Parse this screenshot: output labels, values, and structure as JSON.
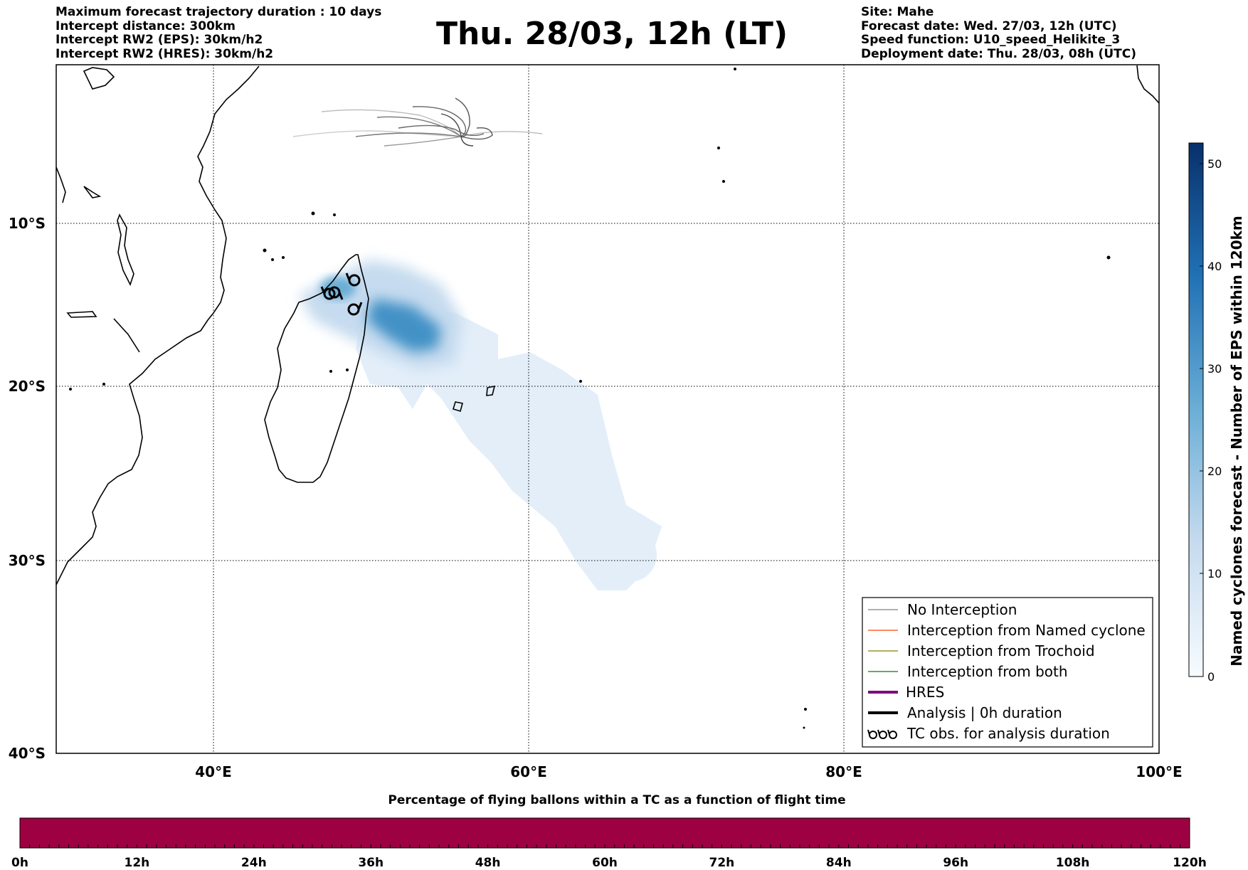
{
  "header": {
    "info_left": [
      "Maximum forecast trajectory duration : 10 days",
      "Intercept distance: 300km",
      "Intercept RW2 (EPS):  30km/h2",
      "Intercept RW2 (HRES): 30km/h2"
    ],
    "title": "Thu. 28/03, 12h (LT)",
    "info_right": [
      "Site: Mahe",
      "Forecast date: Wed. 27/03, 12h (UTC)",
      "Speed function: U10_speed_Helikite_3",
      "Deployment date: Thu. 28/03, 08h (UTC)"
    ]
  },
  "map": {
    "lat_labels": [
      "10°S",
      "20°S",
      "30°S",
      "40°S"
    ],
    "lon_labels": [
      "40°E",
      "60°E",
      "80°E",
      "100°E"
    ],
    "lon_range": [
      30,
      100
    ],
    "lat_range": [
      -40,
      2
    ],
    "grid": "dotted",
    "colors": {
      "coast": "#000000",
      "density": "#2171b5",
      "trajectories": "#555555"
    }
  },
  "colorbar": {
    "label": "Named cyclones forecast - Number of EPS within 120km",
    "ticks": [
      "0",
      "10",
      "20",
      "30",
      "40",
      "50"
    ],
    "range": [
      0,
      52
    ],
    "colors": [
      "#f7fbff",
      "#c6dbef",
      "#6baed6",
      "#2171b5",
      "#08306b"
    ]
  },
  "legend": {
    "position": "bottom-right",
    "items": [
      {
        "label": "No Interception",
        "color": "#808080"
      },
      {
        "label": "Interception from Named cyclone",
        "color": "#ff4500"
      },
      {
        "label": "Interception from Trochoid",
        "color": "#808000"
      },
      {
        "label": "Interception from both",
        "color": "#008000"
      },
      {
        "label": "HRES",
        "color": "#800080"
      },
      {
        "label": "Analysis | 0h duration",
        "color": "#000000"
      },
      {
        "label": "TC obs. for analysis duration",
        "color": "#000000",
        "icon": "cyclone-symbols-icon"
      }
    ]
  },
  "percentage_bar": {
    "title": "Percentage of flying ballons within a TC as a function of flight time",
    "ticks": [
      "0h",
      "12h",
      "24h",
      "36h",
      "48h",
      "60h",
      "72h",
      "84h",
      "96h",
      "108h",
      "120h"
    ],
    "fill_color": "#9e0142"
  }
}
